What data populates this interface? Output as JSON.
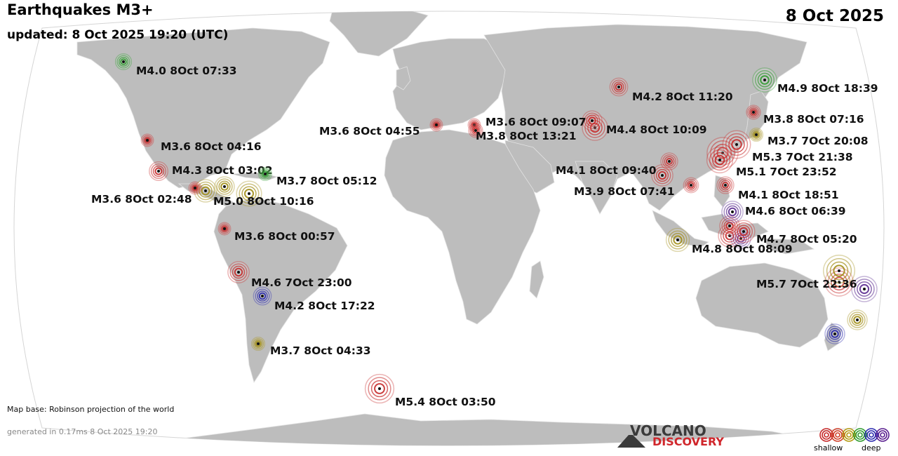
{
  "header": {
    "title": "Earthquakes M3+",
    "updated": "updated:  8 Oct 2025 19:20 (UTC)",
    "date": "8 Oct 2025"
  },
  "footer": {
    "map_base": "Map base: Robinson projection of the world",
    "generated": "generated in 0.17ms  8 Oct 2025 19:20"
  },
  "logo": {
    "line1": "VOLCANO",
    "line2": "DISCOVERY"
  },
  "legend": {
    "shallow_label": "shallow",
    "deep_label": "deep",
    "depth_colors": [
      "#c62828",
      "#d0402a",
      "#b39a10",
      "#2e9b2e",
      "#2b2bb0",
      "#5a1f8f"
    ]
  },
  "colors": {
    "ocean": "#ffffff",
    "land": "#bdbdbd",
    "graticule_border": "#cccccc",
    "depth": {
      "red": "#c62828",
      "yellow": "#a08c14",
      "green": "#2e9b2e",
      "blue": "#2424a8",
      "purple": "#5a2a90"
    }
  },
  "quakes": [
    {
      "id": "alaska",
      "label": "M4.0  8Oct 07:33",
      "mag": 4.0,
      "depth": "green"
    },
    {
      "id": "kamchatka",
      "label": "M4.9  8Oct 18:39",
      "mag": 4.9,
      "depth": "green"
    },
    {
      "id": "mongolia",
      "label": "M4.2  8Oct 11:20",
      "mag": 4.2,
      "depth": "red"
    },
    {
      "id": "japan1",
      "label": "M3.8  8Oct 07:16",
      "mag": 3.8,
      "depth": "red"
    },
    {
      "id": "japan2",
      "label": "M3.7  7Oct 20:08",
      "mag": 3.7,
      "depth": "yellow"
    },
    {
      "id": "taiwan",
      "label": "M5.3  7Oct 21:38",
      "mag": 5.3,
      "depth": "red"
    },
    {
      "id": "philippines1",
      "label": "M5.1  7Oct 23:52",
      "mag": 5.1,
      "depth": "red"
    },
    {
      "id": "philippines2",
      "label": "M4.1  8Oct 18:51",
      "mag": 4.1,
      "depth": "red"
    },
    {
      "id": "bangladesh",
      "label": "M4.1  8Oct 09:40",
      "mag": 4.1,
      "depth": "red"
    },
    {
      "id": "vietnam",
      "label": "M3.9  8Oct 07:41",
      "mag": 3.9,
      "depth": "red"
    },
    {
      "id": "molucca",
      "label": "M4.6  8Oct 06:39",
      "mag": 4.6,
      "depth": "purple"
    },
    {
      "id": "sulawesi",
      "label": "M4.7  8Oct 05:20",
      "mag": 4.7,
      "depth": "red"
    },
    {
      "id": "java",
      "label": "M4.8  8Oct 08:09",
      "mag": 4.8,
      "depth": "yellow"
    },
    {
      "id": "vanuatu",
      "label": "M5.7  7Oct 22:36",
      "mag": 5.7,
      "depth": "yellow"
    },
    {
      "id": "afghanistan",
      "label": "M4.4  8Oct 10:09",
      "mag": 4.4,
      "depth": "red"
    },
    {
      "id": "turkey",
      "label": "M3.6  8Oct 09:07",
      "mag": 3.6,
      "depth": "red"
    },
    {
      "id": "cyprus",
      "label": "M3.8  8Oct 13:21",
      "mag": 3.8,
      "depth": "red"
    },
    {
      "id": "italy",
      "label": "M3.6  8Oct 04:55",
      "mag": 3.6,
      "depth": "red"
    },
    {
      "id": "baja",
      "label": "M3.6  8Oct 04:16",
      "mag": 3.6,
      "depth": "red"
    },
    {
      "id": "mexico",
      "label": "M4.3  8Oct 03:02",
      "mag": 4.3,
      "depth": "red"
    },
    {
      "id": "caribbean",
      "label": "M3.7  8Oct 05:12",
      "mag": 3.7,
      "depth": "green"
    },
    {
      "id": "guatemala",
      "label": "M3.6  8Oct 02:48",
      "mag": 3.6,
      "depth": "red"
    },
    {
      "id": "panama",
      "label": "M5.0  8Oct 10:16",
      "mag": 5.0,
      "depth": "yellow"
    },
    {
      "id": "peru",
      "label": "M3.6  8Oct 00:57",
      "mag": 3.6,
      "depth": "red"
    },
    {
      "id": "chile1",
      "label": "M4.6  7Oct 23:00",
      "mag": 4.6,
      "depth": "red"
    },
    {
      "id": "argentina",
      "label": "M4.2  8Oct 17:22",
      "mag": 4.2,
      "depth": "blue"
    },
    {
      "id": "chile2",
      "label": "M3.7  8Oct 04:33",
      "mag": 3.7,
      "depth": "yellow"
    },
    {
      "id": "south_sandwich",
      "label": "M5.4  8Oct 03:50",
      "mag": 5.4,
      "depth": "red"
    }
  ]
}
